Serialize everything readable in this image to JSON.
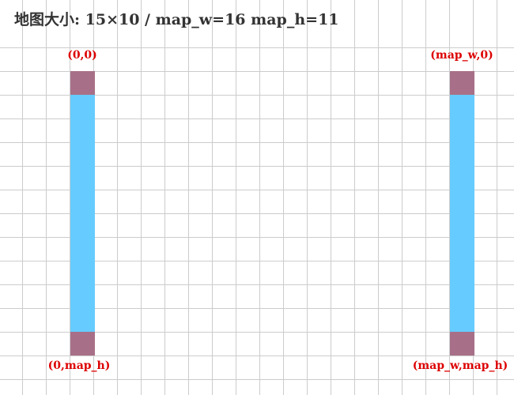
{
  "title": "地图大小: 15×10 / map_w=16 map_h=11",
  "colors": {
    "grid": "#cccccc",
    "column": "#66ccff",
    "corner": "#a87088",
    "label": "#dd0000"
  },
  "corners": [
    {
      "key": "top-left",
      "label": "(0,0)"
    },
    {
      "key": "top-right",
      "label": "(map_w,0)"
    },
    {
      "key": "bottom-left",
      "label": "(0,map_h)"
    },
    {
      "key": "bottom-right",
      "label": "(map_w,map_h)"
    }
  ]
}
